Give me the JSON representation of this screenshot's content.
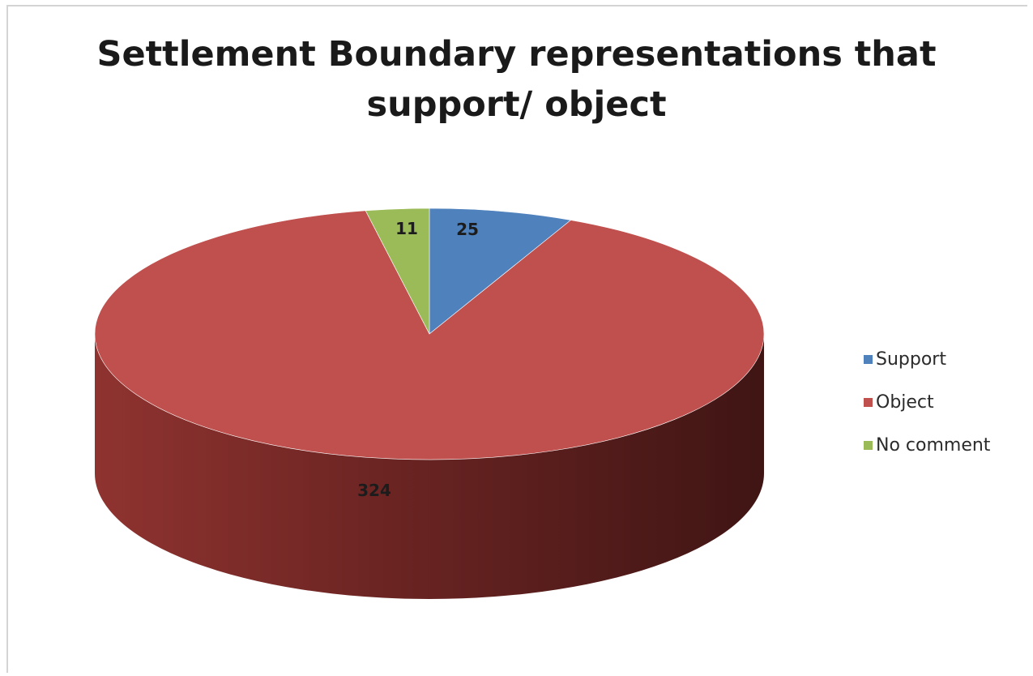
{
  "chart_data": {
    "type": "pie",
    "title_lines": [
      "Settlement Boundary representations that",
      "support/ object"
    ],
    "three_d": true,
    "legend_position": "right",
    "slices": [
      {
        "label": "Support",
        "value": 25,
        "color": "#4f81bd"
      },
      {
        "label": "Object",
        "value": 324,
        "color": "#c0504d"
      },
      {
        "label": "No comment",
        "value": 11,
        "color": "#9bbb59"
      }
    ]
  }
}
